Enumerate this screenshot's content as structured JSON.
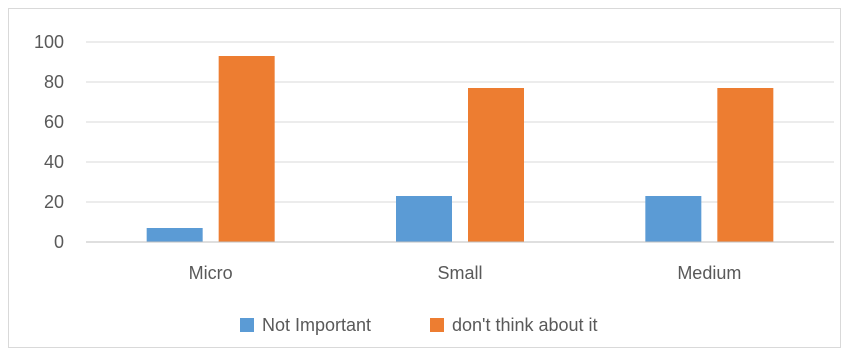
{
  "chart_data": {
    "type": "bar",
    "categories": [
      "Micro",
      "Small",
      "Medium"
    ],
    "series": [
      {
        "name": "Not Important",
        "values": [
          7,
          23,
          23
        ],
        "color": "#5b9bd5"
      },
      {
        "name": "don't think about it",
        "values": [
          93,
          77,
          77
        ],
        "color": "#ed7d31"
      }
    ],
    "title": "",
    "xlabel": "",
    "ylabel": "",
    "ylim": [
      0,
      100
    ],
    "yticks": [
      0,
      20,
      40,
      60,
      80,
      100
    ],
    "grid": true,
    "legend": "bottom",
    "gridline_color": "#d9d9d9",
    "axis_color": "#bfbfbf"
  }
}
